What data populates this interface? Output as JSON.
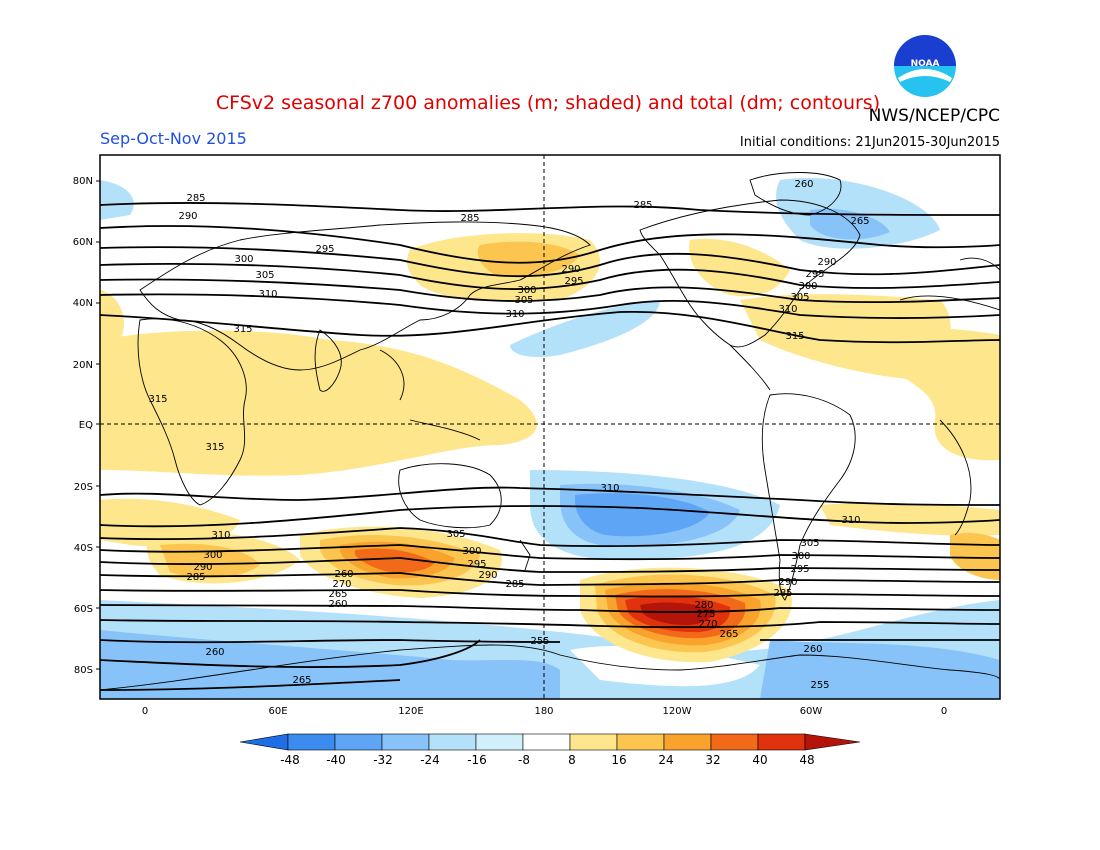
{
  "header": {
    "title": "CFSv2 seasonal z700 anomalies (m; shaded) and total (dm; contours)",
    "agency": "NWS/NCEP/CPC",
    "season": "Sep-Oct-Nov 2015",
    "initial_conditions": "Initial conditions: 21Jun2015-30Jun2015",
    "logo_text": "NOAA"
  },
  "colors": {
    "title": "#e00000",
    "season": "#2050e0",
    "text": "#000000",
    "noaa_blue": "#1a3fd0",
    "noaa_cyan": "#27c3f0"
  },
  "map": {
    "lat_labels": [
      "80N",
      "60N",
      "40N",
      "20N",
      "EQ",
      "20S",
      "40S",
      "60S",
      "80S"
    ],
    "lon_labels": [
      "0",
      "60E",
      "120E",
      "180",
      "120W",
      "60W",
      "0"
    ]
  },
  "colorbar": {
    "ticks": [
      "-48",
      "-40",
      "-32",
      "-24",
      "-16",
      "-8",
      "8",
      "16",
      "24",
      "32",
      "40",
      "48"
    ],
    "colors": [
      "#1e6ee6",
      "#3c8cf0",
      "#5fa5f5",
      "#87c3f8",
      "#b4e1fa",
      "#ffffff",
      "#fde68c",
      "#fbc550",
      "#f9a32d",
      "#f26a19",
      "#e1320e",
      "#b4140a"
    ]
  },
  "contour_labels": [
    {
      "text": "285",
      "pos": "north-atlantic"
    },
    {
      "text": "290",
      "pos": "north-atlantic"
    },
    {
      "text": "295",
      "pos": "europe"
    },
    {
      "text": "300",
      "pos": "europe"
    },
    {
      "text": "305",
      "pos": "europe"
    },
    {
      "text": "310",
      "pos": "europe"
    },
    {
      "text": "315",
      "pos": "sahara"
    },
    {
      "text": "285",
      "pos": "north-pacific"
    },
    {
      "text": "290",
      "pos": "north-pacific"
    },
    {
      "text": "295",
      "pos": "north-pacific"
    },
    {
      "text": "300",
      "pos": "north-pacific"
    },
    {
      "text": "305",
      "pos": "north-pacific"
    },
    {
      "text": "310",
      "pos": "north-pacific"
    },
    {
      "text": "285",
      "pos": "canada"
    },
    {
      "text": "260",
      "pos": "greenland"
    },
    {
      "text": "265",
      "pos": "greenland"
    },
    {
      "text": "290",
      "pos": "north-atlantic-w"
    },
    {
      "text": "295",
      "pos": "north-atlantic-w"
    },
    {
      "text": "300",
      "pos": "north-atlantic-w"
    },
    {
      "text": "305",
      "pos": "north-atlantic-w"
    },
    {
      "text": "310",
      "pos": "north-atlantic-w"
    },
    {
      "text": "315",
      "pos": "caribbean"
    },
    {
      "text": "315",
      "pos": "west-africa"
    },
    {
      "text": "315",
      "pos": "central-africa"
    },
    {
      "text": "310",
      "pos": "south-pacific"
    },
    {
      "text": "310",
      "pos": "south-america"
    },
    {
      "text": "310",
      "pos": "south-africa"
    },
    {
      "text": "300",
      "pos": "south-atlantic-e"
    },
    {
      "text": "290",
      "pos": "south-atlantic-e"
    },
    {
      "text": "285",
      "pos": "south-atlantic-e"
    },
    {
      "text": "305",
      "pos": "tasman"
    },
    {
      "text": "300",
      "pos": "tasman"
    },
    {
      "text": "295",
      "pos": "tasman"
    },
    {
      "text": "290",
      "pos": "tasman"
    },
    {
      "text": "285",
      "pos": "south-pacific-w"
    },
    {
      "text": "260",
      "pos": "indian-ocean-s"
    },
    {
      "text": "270",
      "pos": "indian-ocean-s"
    },
    {
      "text": "265",
      "pos": "indian-ocean-s"
    },
    {
      "text": "260",
      "pos": "indian-ocean-s"
    },
    {
      "text": "280",
      "pos": "south-pacific-e"
    },
    {
      "text": "275",
      "pos": "south-pacific-e"
    },
    {
      "text": "270",
      "pos": "south-pacific-e"
    },
    {
      "text": "265",
      "pos": "south-pacific-e"
    },
    {
      "text": "305",
      "pos": "drake"
    },
    {
      "text": "300",
      "pos": "drake"
    },
    {
      "text": "295",
      "pos": "drake"
    },
    {
      "text": "290",
      "pos": "drake"
    },
    {
      "text": "285",
      "pos": "drake"
    },
    {
      "text": "255",
      "pos": "ross-sea"
    },
    {
      "text": "260",
      "pos": "antarctic-e"
    },
    {
      "text": "265",
      "pos": "antarctic-e"
    },
    {
      "text": "260",
      "pos": "weddell"
    },
    {
      "text": "255",
      "pos": "weddell"
    }
  ]
}
